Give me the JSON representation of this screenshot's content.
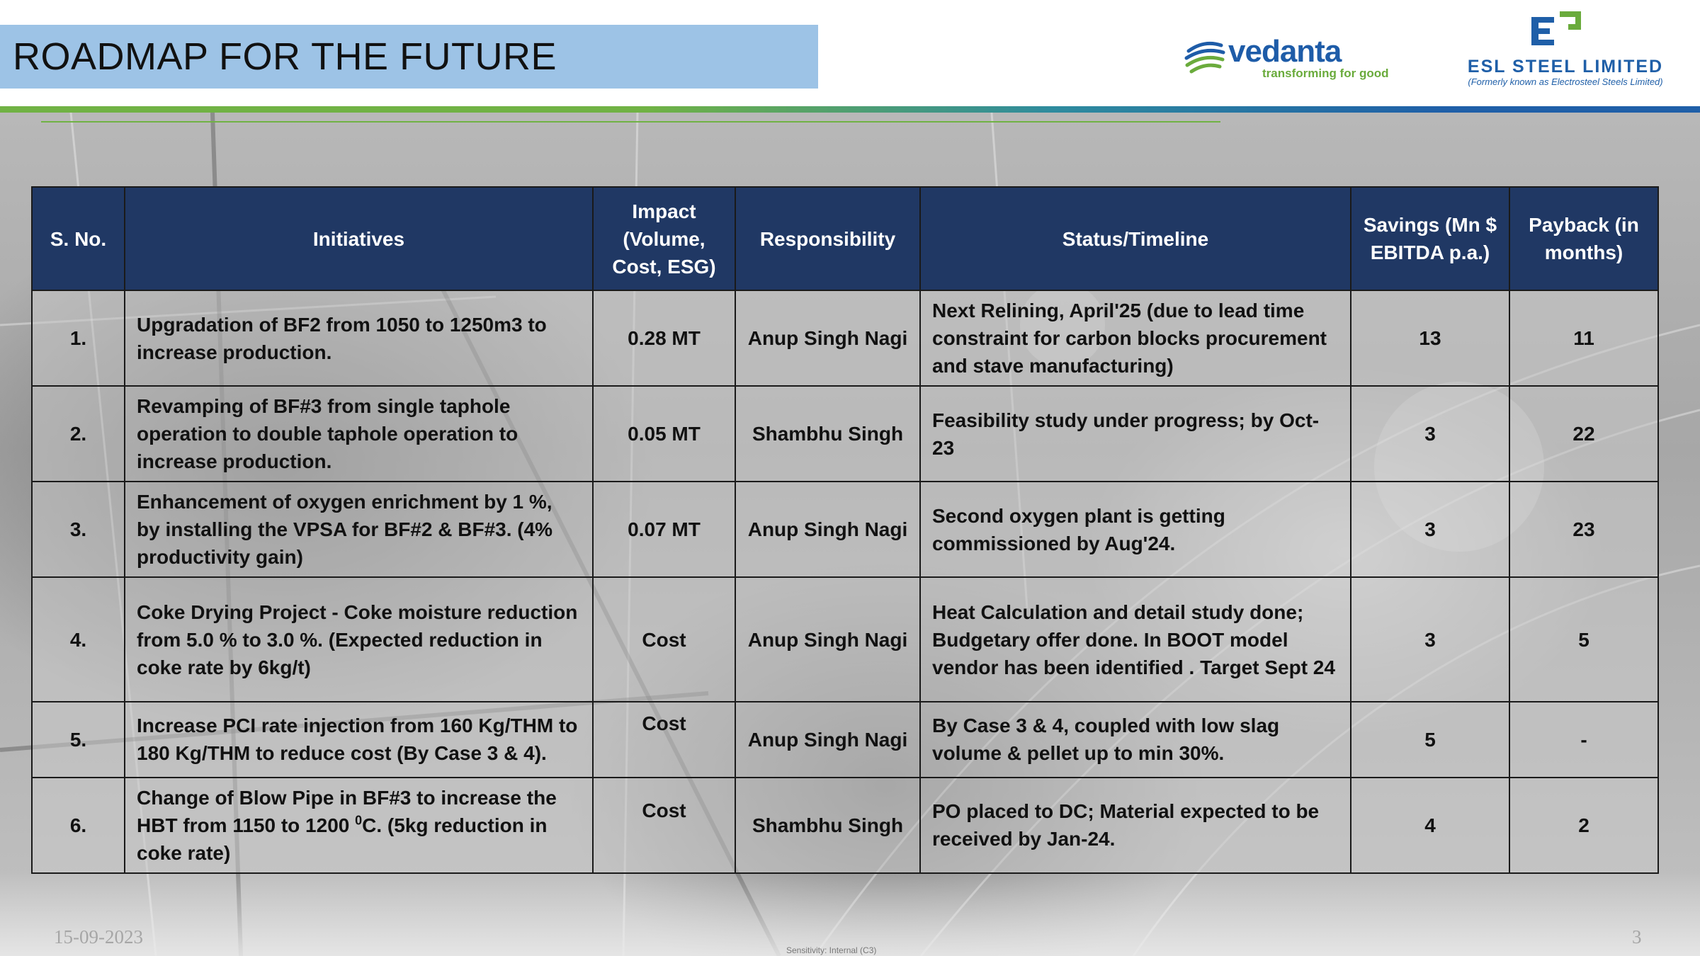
{
  "slide": {
    "title": "ROADMAP FOR THE FUTURE"
  },
  "logos": {
    "vedanta": {
      "name": "vedanta",
      "tagline": "transforming for good"
    },
    "esl": {
      "name": "ESL STEEL LIMITED",
      "subtitle": "(Formerly known as Electrosteel Steels Limited)"
    }
  },
  "table": {
    "headers": {
      "sno": "S. No.",
      "initiatives": "Initiatives",
      "impact": "Impact (Volume, Cost, ESG)",
      "responsibility": "Responsibility",
      "status": "Status/Timeline",
      "savings": "Savings (Mn $ EBITDA p.a.)",
      "payback": "Payback (in months)"
    },
    "rows": [
      {
        "sno": "1.",
        "initiative": "Upgradation of BF2 from 1050 to 1250m3 to increase production.",
        "impact": "0.28 MT",
        "responsibility": "Anup Singh Nagi",
        "status": "Next Relining, April'25 (due to lead time constraint for carbon blocks procurement and stave manufacturing)",
        "savings": "13",
        "payback": "11"
      },
      {
        "sno": "2.",
        "initiative": "Revamping of BF#3 from single taphole operation to double taphole operation to increase production.",
        "impact": "0.05 MT",
        "responsibility": "Shambhu Singh",
        "status": "Feasibility study under progress; by Oct-23",
        "savings": "3",
        "payback": "22"
      },
      {
        "sno": "3.",
        "initiative": "Enhancement of oxygen enrichment by 1 %, by installing the VPSA for BF#2 & BF#3. (4% productivity gain)",
        "impact": "0.07 MT",
        "responsibility": "Anup Singh Nagi",
        "status": "Second oxygen plant is getting  commissioned by Aug'24.",
        "savings": "3",
        "payback": "23"
      },
      {
        "sno": "4.",
        "initiative": "Coke Drying Project - Coke moisture reduction from 5.0 % to 3.0 %. (Expected reduction in coke rate by 6kg/t)",
        "impact": "Cost",
        "responsibility": "Anup Singh Nagi",
        "status": "Heat Calculation and detail study done; Budgetary offer done.  In BOOT model vendor has been identified . Target Sept 24",
        "savings": "3",
        "payback": "5"
      },
      {
        "sno": "5.",
        "initiative": "Increase PCI rate injection from 160 Kg/THM to 180 Kg/THM to reduce cost (By Case 3 & 4).",
        "impact": "Cost",
        "responsibility": "Anup Singh Nagi",
        "status": "By Case 3 & 4, coupled with low slag volume & pellet up to min 30%.",
        "savings": "5",
        "payback": "-"
      },
      {
        "sno": "6.",
        "initiative_pre": "Change of Blow Pipe in BF#3 to increase the HBT from 1150 to 1200 ",
        "initiative_sup": "0",
        "initiative_post": "C. (5kg reduction in coke rate)",
        "impact": "Cost",
        "responsibility": "Shambhu Singh",
        "status": "PO placed to DC; Material expected to be received by Jan-24.",
        "savings": "4",
        "payback": "2"
      }
    ]
  },
  "footer": {
    "date": "15-09-2023",
    "sensitivity": "Sensitivity: Internal (C3)",
    "page": "3"
  },
  "colors": {
    "title_bar": "#9dc3e6",
    "header_fill": "#203864",
    "accent_green": "#70b244",
    "accent_blue": "#1f5fa8"
  }
}
